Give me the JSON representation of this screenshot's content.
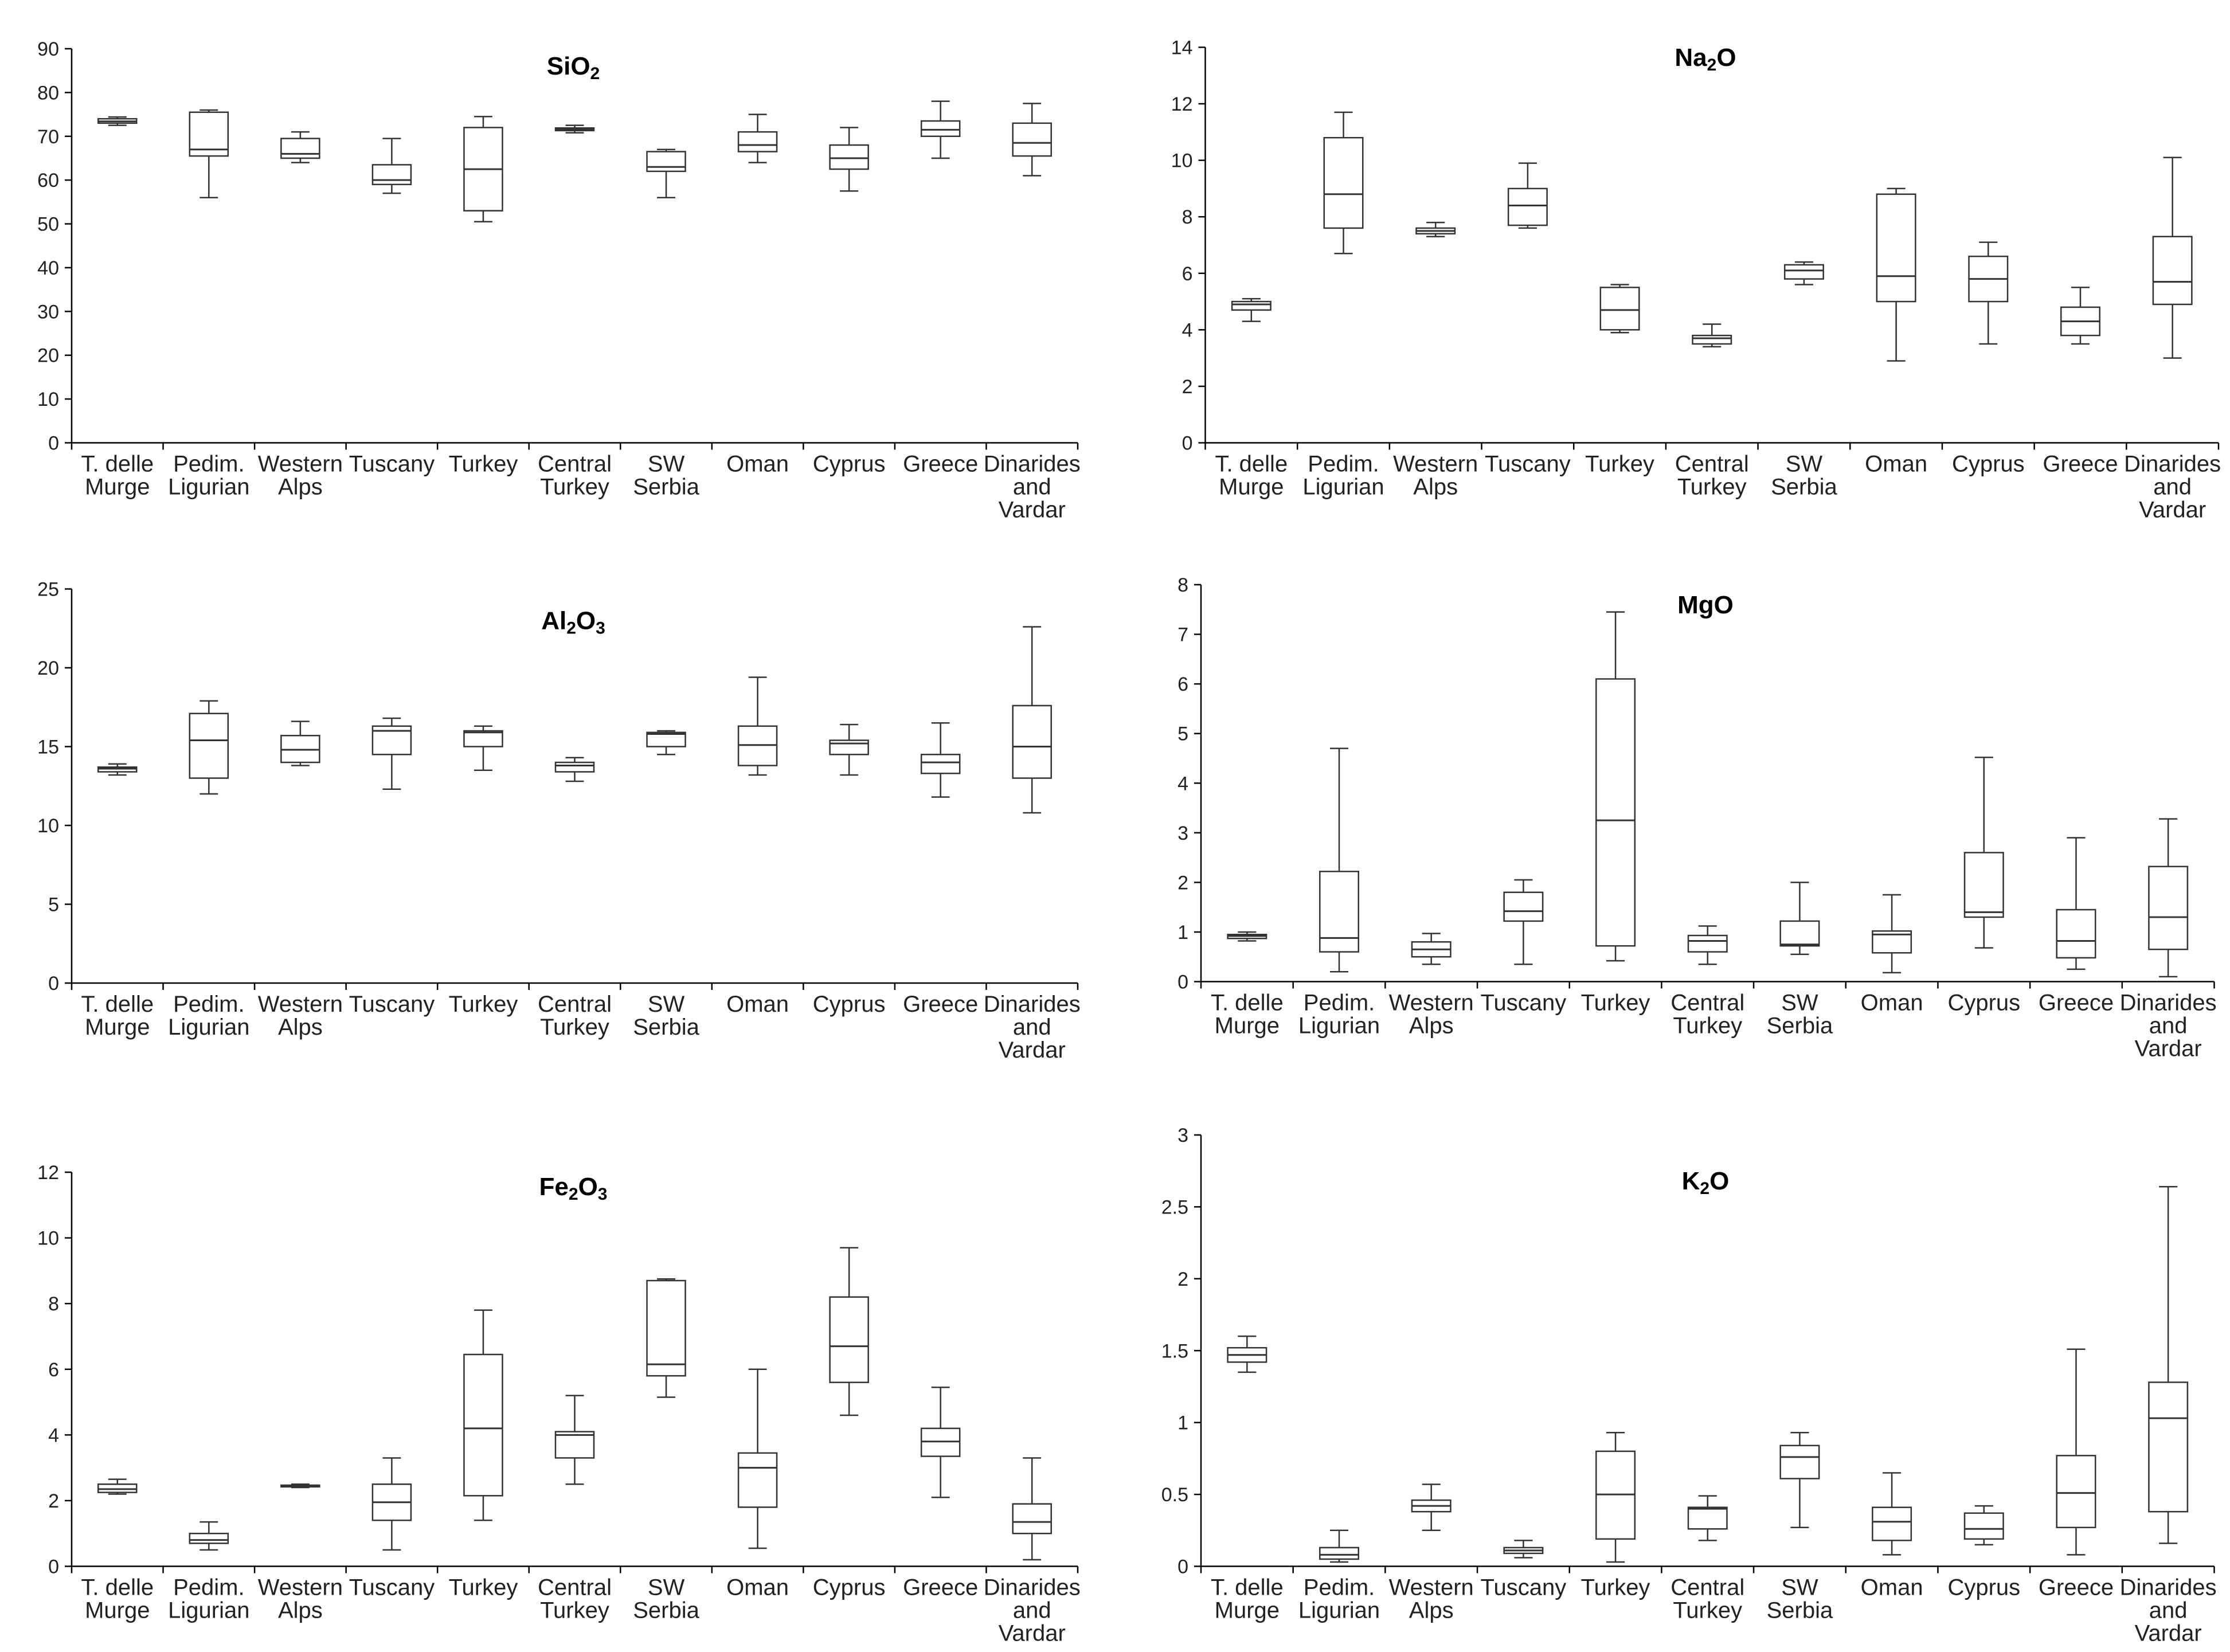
{
  "chart_data": [
    {
      "type": "box",
      "title": "SiO2",
      "title_main": "SiO",
      "title_sub": "2",
      "ylim": [
        0,
        90
      ],
      "yticks": [
        "0",
        "10",
        "20",
        "30",
        "40",
        "50",
        "60",
        "70",
        "80",
        "90"
      ],
      "categories": [
        {
          "lines": [
            "T. delle",
            "Murge"
          ]
        },
        {
          "lines": [
            "Pedim.",
            "Ligurian"
          ]
        },
        {
          "lines": [
            "Western",
            "Alps"
          ]
        },
        {
          "lines": [
            "Tuscany"
          ]
        },
        {
          "lines": [
            "Turkey"
          ]
        },
        {
          "lines": [
            "Central",
            "Turkey"
          ]
        },
        {
          "lines": [
            "SW",
            "Serbia"
          ]
        },
        {
          "lines": [
            "Oman"
          ]
        },
        {
          "lines": [
            "Cyprus"
          ]
        },
        {
          "lines": [
            "Greece"
          ]
        },
        {
          "lines": [
            "Dinarides",
            "and",
            "Vardar"
          ]
        }
      ],
      "boxes": [
        {
          "min": 72.5,
          "q1": 73.0,
          "median": 73.4,
          "q3": 74.0,
          "max": 74.4
        },
        {
          "min": 56.0,
          "q1": 65.5,
          "median": 67.0,
          "q3": 75.5,
          "max": 76.0
        },
        {
          "min": 64.0,
          "q1": 65.0,
          "median": 66.0,
          "q3": 69.5,
          "max": 71.0
        },
        {
          "min": 57.0,
          "q1": 59.0,
          "median": 60.0,
          "q3": 63.5,
          "max": 69.5
        },
        {
          "min": 50.5,
          "q1": 53.0,
          "median": 62.5,
          "q3": 72.0,
          "max": 74.5
        },
        {
          "min": 70.8,
          "q1": 71.3,
          "median": 71.6,
          "q3": 71.9,
          "max": 72.5
        },
        {
          "min": 56.0,
          "q1": 62.0,
          "median": 63.0,
          "q3": 66.5,
          "max": 67.0
        },
        {
          "min": 64.0,
          "q1": 66.5,
          "median": 68.0,
          "q3": 71.0,
          "max": 75.0
        },
        {
          "min": 57.5,
          "q1": 62.5,
          "median": 65.0,
          "q3": 68.0,
          "max": 72.0
        },
        {
          "min": 65.0,
          "q1": 70.0,
          "median": 71.5,
          "q3": 73.5,
          "max": 78.0
        },
        {
          "min": 61.0,
          "q1": 65.5,
          "median": 68.5,
          "q3": 73.0,
          "max": 77.5
        }
      ]
    },
    {
      "type": "box",
      "title": "Na2O",
      "title_main": "Na",
      "title_sub": "2",
      "title_after": "O",
      "ylim": [
        0,
        14
      ],
      "yticks": [
        "0",
        "2",
        "4",
        "6",
        "8",
        "10",
        "12",
        "14"
      ],
      "categories": [
        {
          "lines": [
            "T. delle",
            "Murge"
          ]
        },
        {
          "lines": [
            "Pedim.",
            "Ligurian"
          ]
        },
        {
          "lines": [
            "Western",
            "Alps"
          ]
        },
        {
          "lines": [
            "Tuscany"
          ]
        },
        {
          "lines": [
            "Turkey"
          ]
        },
        {
          "lines": [
            "Central",
            "Turkey"
          ]
        },
        {
          "lines": [
            "SW",
            "Serbia"
          ]
        },
        {
          "lines": [
            "Oman"
          ]
        },
        {
          "lines": [
            "Cyprus"
          ]
        },
        {
          "lines": [
            "Greece"
          ]
        },
        {
          "lines": [
            "Dinarides",
            "and",
            "Vardar"
          ]
        }
      ],
      "boxes": [
        {
          "min": 4.3,
          "q1": 4.7,
          "median": 4.9,
          "q3": 5.0,
          "max": 5.1
        },
        {
          "min": 6.7,
          "q1": 7.6,
          "median": 8.8,
          "q3": 10.8,
          "max": 11.7
        },
        {
          "min": 7.3,
          "q1": 7.4,
          "median": 7.5,
          "q3": 7.6,
          "max": 7.8
        },
        {
          "min": 7.6,
          "q1": 7.7,
          "median": 8.4,
          "q3": 9.0,
          "max": 9.9
        },
        {
          "min": 3.9,
          "q1": 4.0,
          "median": 4.7,
          "q3": 5.5,
          "max": 5.6
        },
        {
          "min": 3.4,
          "q1": 3.5,
          "median": 3.7,
          "q3": 3.8,
          "max": 4.2
        },
        {
          "min": 5.6,
          "q1": 5.8,
          "median": 6.1,
          "q3": 6.3,
          "max": 6.4
        },
        {
          "min": 2.9,
          "q1": 5.0,
          "median": 5.9,
          "q3": 8.8,
          "max": 9.0
        },
        {
          "min": 3.5,
          "q1": 5.0,
          "median": 5.8,
          "q3": 6.6,
          "max": 7.1
        },
        {
          "min": 3.5,
          "q1": 3.8,
          "median": 4.3,
          "q3": 4.8,
          "max": 5.5
        },
        {
          "min": 3.0,
          "q1": 4.9,
          "median": 5.7,
          "q3": 7.3,
          "max": 10.1
        }
      ]
    },
    {
      "type": "box",
      "title": "Al2O3",
      "title_main": "Al",
      "title_sub": "2",
      "title_after": "O",
      "title_sub2": "3",
      "ylim": [
        0,
        25
      ],
      "yticks": [
        "0",
        "5",
        "10",
        "15",
        "20",
        "25"
      ],
      "categories": [
        {
          "lines": [
            "T. delle",
            "Murge"
          ]
        },
        {
          "lines": [
            "Pedim.",
            "Ligurian"
          ]
        },
        {
          "lines": [
            "Western",
            "Alps"
          ]
        },
        {
          "lines": [
            "Tuscany"
          ]
        },
        {
          "lines": [
            "Turkey"
          ]
        },
        {
          "lines": [
            "Central",
            "Turkey"
          ]
        },
        {
          "lines": [
            "SW",
            "Serbia"
          ]
        },
        {
          "lines": [
            "Oman"
          ]
        },
        {
          "lines": [
            "Cyprus"
          ]
        },
        {
          "lines": [
            "Greece"
          ]
        },
        {
          "lines": [
            "Dinarides",
            "and",
            "Vardar"
          ]
        }
      ],
      "boxes": [
        {
          "min": 13.2,
          "q1": 13.4,
          "median": 13.6,
          "q3": 13.7,
          "max": 13.9
        },
        {
          "min": 12.0,
          "q1": 13.0,
          "median": 15.4,
          "q3": 17.1,
          "max": 17.9
        },
        {
          "min": 13.8,
          "q1": 14.0,
          "median": 14.8,
          "q3": 15.7,
          "max": 16.6
        },
        {
          "min": 12.3,
          "q1": 14.5,
          "median": 16.0,
          "q3": 16.3,
          "max": 16.8
        },
        {
          "min": 13.5,
          "q1": 15.0,
          "median": 15.9,
          "q3": 16.0,
          "max": 16.3
        },
        {
          "min": 12.8,
          "q1": 13.4,
          "median": 13.8,
          "q3": 14.0,
          "max": 14.3
        },
        {
          "min": 14.5,
          "q1": 15.0,
          "median": 15.8,
          "q3": 15.9,
          "max": 16.0
        },
        {
          "min": 13.2,
          "q1": 13.8,
          "median": 15.1,
          "q3": 16.3,
          "max": 19.4
        },
        {
          "min": 13.2,
          "q1": 14.5,
          "median": 15.2,
          "q3": 15.4,
          "max": 16.4
        },
        {
          "min": 11.8,
          "q1": 13.3,
          "median": 14.0,
          "q3": 14.5,
          "max": 16.5
        },
        {
          "min": 10.8,
          "q1": 13.0,
          "median": 15.0,
          "q3": 17.6,
          "max": 22.6
        }
      ]
    },
    {
      "type": "box",
      "title": "MgO",
      "title_main": "MgO",
      "ylim": [
        0,
        8
      ],
      "yticks": [
        "0",
        "1",
        "2",
        "3",
        "4",
        "5",
        "6",
        "7",
        "8"
      ],
      "categories": [
        {
          "lines": [
            "T. delle",
            "Murge"
          ]
        },
        {
          "lines": [
            "Pedim.",
            "Ligurian"
          ]
        },
        {
          "lines": [
            "Western",
            "Alps"
          ]
        },
        {
          "lines": [
            "Tuscany"
          ]
        },
        {
          "lines": [
            "Turkey"
          ]
        },
        {
          "lines": [
            "Central",
            "Turkey"
          ]
        },
        {
          "lines": [
            "SW",
            "Serbia"
          ]
        },
        {
          "lines": [
            "Oman"
          ]
        },
        {
          "lines": [
            "Cyprus"
          ]
        },
        {
          "lines": [
            "Greece"
          ]
        },
        {
          "lines": [
            "Dinarides",
            "and",
            "Vardar"
          ]
        }
      ],
      "boxes": [
        {
          "min": 0.82,
          "q1": 0.87,
          "median": 0.92,
          "q3": 0.95,
          "max": 1.0
        },
        {
          "min": 0.2,
          "q1": 0.6,
          "median": 0.88,
          "q3": 2.22,
          "max": 4.7
        },
        {
          "min": 0.35,
          "q1": 0.5,
          "median": 0.65,
          "q3": 0.8,
          "max": 0.97
        },
        {
          "min": 0.35,
          "q1": 1.22,
          "median": 1.42,
          "q3": 1.8,
          "max": 2.05
        },
        {
          "min": 0.42,
          "q1": 0.72,
          "median": 3.25,
          "q3": 6.1,
          "max": 7.45
        },
        {
          "min": 0.35,
          "q1": 0.6,
          "median": 0.82,
          "q3": 0.93,
          "max": 1.12
        },
        {
          "min": 0.55,
          "q1": 0.72,
          "median": 0.75,
          "q3": 1.22,
          "max": 2.0
        },
        {
          "min": 0.18,
          "q1": 0.58,
          "median": 0.95,
          "q3": 1.02,
          "max": 1.75
        },
        {
          "min": 0.68,
          "q1": 1.3,
          "median": 1.4,
          "q3": 2.6,
          "max": 4.52
        },
        {
          "min": 0.25,
          "q1": 0.48,
          "median": 0.82,
          "q3": 1.45,
          "max": 2.9
        },
        {
          "min": 0.1,
          "q1": 0.65,
          "median": 1.3,
          "q3": 2.32,
          "max": 3.28
        }
      ]
    },
    {
      "type": "box",
      "title": "Fe2O3",
      "title_main": "Fe",
      "title_sub": "2",
      "title_after": "O",
      "title_sub2": "3",
      "ylim": [
        0,
        12
      ],
      "yticks": [
        "0",
        "2",
        "4",
        "6",
        "8",
        "10",
        "12"
      ],
      "categories": [
        {
          "lines": [
            "T. delle",
            "Murge"
          ]
        },
        {
          "lines": [
            "Pedim.",
            "Ligurian"
          ]
        },
        {
          "lines": [
            "Western",
            "Alps"
          ]
        },
        {
          "lines": [
            "Tuscany"
          ]
        },
        {
          "lines": [
            "Turkey"
          ]
        },
        {
          "lines": [
            "Central",
            "Turkey"
          ]
        },
        {
          "lines": [
            "SW",
            "Serbia"
          ]
        },
        {
          "lines": [
            "Oman"
          ]
        },
        {
          "lines": [
            "Cyprus"
          ]
        },
        {
          "lines": [
            "Greece"
          ]
        },
        {
          "lines": [
            "Dinarides",
            "and",
            "Vardar"
          ]
        }
      ],
      "boxes": [
        {
          "min": 2.2,
          "q1": 2.25,
          "median": 2.35,
          "q3": 2.5,
          "max": 2.65
        },
        {
          "min": 0.5,
          "q1": 0.7,
          "median": 0.8,
          "q3": 1.0,
          "max": 1.35
        },
        {
          "min": 2.4,
          "q1": 2.42,
          "median": 2.45,
          "q3": 2.47,
          "max": 2.5
        },
        {
          "min": 0.5,
          "q1": 1.4,
          "median": 1.95,
          "q3": 2.5,
          "max": 3.3
        },
        {
          "min": 1.4,
          "q1": 2.15,
          "median": 4.2,
          "q3": 6.45,
          "max": 7.8
        },
        {
          "min": 2.5,
          "q1": 3.3,
          "median": 4.0,
          "q3": 4.1,
          "max": 5.2
        },
        {
          "min": 5.15,
          "q1": 5.8,
          "median": 6.15,
          "q3": 8.7,
          "max": 8.75
        },
        {
          "min": 0.55,
          "q1": 1.8,
          "median": 3.0,
          "q3": 3.45,
          "max": 6.0
        },
        {
          "min": 4.6,
          "q1": 5.6,
          "median": 6.7,
          "q3": 8.2,
          "max": 9.7
        },
        {
          "min": 2.1,
          "q1": 3.35,
          "median": 3.8,
          "q3": 4.2,
          "max": 5.45
        },
        {
          "min": 0.2,
          "q1": 1.0,
          "median": 1.35,
          "q3": 1.9,
          "max": 3.3
        }
      ]
    },
    {
      "type": "box",
      "title": "K2O",
      "title_main": "K",
      "title_sub": "2",
      "title_after": "O",
      "ylim": [
        0,
        3
      ],
      "yticks": [
        "0",
        "0.5",
        "1",
        "1.5",
        "2",
        "2.5",
        "3"
      ],
      "categories": [
        {
          "lines": [
            "T. delle",
            "Murge"
          ]
        },
        {
          "lines": [
            "Pedim.",
            "Ligurian"
          ]
        },
        {
          "lines": [
            "Western",
            "Alps"
          ]
        },
        {
          "lines": [
            "Tuscany"
          ]
        },
        {
          "lines": [
            "Turkey"
          ]
        },
        {
          "lines": [
            "Central",
            "Turkey"
          ]
        },
        {
          "lines": [
            "SW",
            "Serbia"
          ]
        },
        {
          "lines": [
            "Oman"
          ]
        },
        {
          "lines": [
            "Cyprus"
          ]
        },
        {
          "lines": [
            "Greece"
          ]
        },
        {
          "lines": [
            "Dinarides",
            "and",
            "Vardar"
          ]
        }
      ],
      "boxes": [
        {
          "min": 1.35,
          "q1": 1.42,
          "median": 1.47,
          "q3": 1.52,
          "max": 1.6
        },
        {
          "min": 0.03,
          "q1": 0.05,
          "median": 0.08,
          "q3": 0.13,
          "max": 0.25
        },
        {
          "min": 0.25,
          "q1": 0.38,
          "median": 0.42,
          "q3": 0.46,
          "max": 0.57
        },
        {
          "min": 0.06,
          "q1": 0.09,
          "median": 0.11,
          "q3": 0.13,
          "max": 0.18
        },
        {
          "min": 0.03,
          "q1": 0.19,
          "median": 0.5,
          "q3": 0.8,
          "max": 0.93
        },
        {
          "min": 0.18,
          "q1": 0.26,
          "median": 0.4,
          "q3": 0.41,
          "max": 0.49
        },
        {
          "min": 0.27,
          "q1": 0.61,
          "median": 0.76,
          "q3": 0.84,
          "max": 0.93
        },
        {
          "min": 0.08,
          "q1": 0.18,
          "median": 0.31,
          "q3": 0.41,
          "max": 0.65
        },
        {
          "min": 0.15,
          "q1": 0.19,
          "median": 0.26,
          "q3": 0.37,
          "max": 0.42
        },
        {
          "min": 0.08,
          "q1": 0.27,
          "median": 0.51,
          "q3": 0.77,
          "max": 1.51
        },
        {
          "min": 0.16,
          "q1": 0.38,
          "median": 1.03,
          "q3": 1.28,
          "max": 2.64
        }
      ]
    }
  ]
}
